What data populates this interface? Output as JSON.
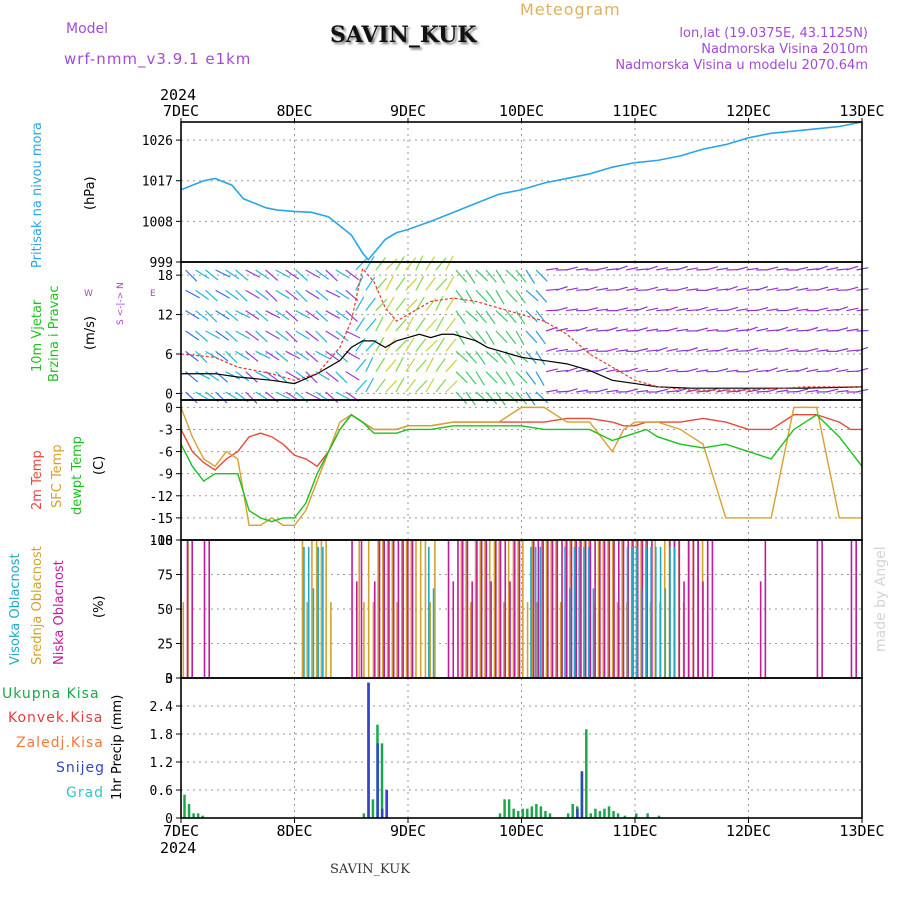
{
  "header": {
    "model_label": "Model",
    "model_value": "wrf-nmm_v3.9.1 e1km",
    "station": "SAVIN_KUK",
    "meteogram": "Meteogram",
    "lonlat": "lon,lat (19.0375E, 43.1125N)",
    "altitude": "Nadmorska Visina 2010m",
    "model_altitude": "Nadmorska Visina u modelu 2070.64m",
    "year_top": "2024",
    "year_bottom": "2024",
    "footer_station": "SAVIN_KUK",
    "watermark": "made by Angel"
  },
  "dates": [
    "7DEC",
    "8DEC",
    "9DEC",
    "10DEC",
    "11DEC",
    "12DEC",
    "13DEC"
  ],
  "labels": {
    "pressure": "Pritisak na nivou mora",
    "pressure_unit": "(hPa)",
    "wind1": "10m Vjetar",
    "wind2": "Brzina i Pravac",
    "wind_unit": "(m/s)",
    "wind_compass_w": "W",
    "wind_compass_e": "E",
    "wind_compass_ns": "S <-|-> N",
    "temp_2m": "2m Temp",
    "temp_sfc": "SFC Temp",
    "temp_dew": "dewpt Temp",
    "temp_unit": "(C)",
    "cloud_high": "Visoka Oblacnost",
    "cloud_mid": "Srednja Oblacnost",
    "cloud_low": "Niska Oblacnost",
    "cloud_unit": "(%)",
    "precip_total": "Ukupna Kisa",
    "precip_conv": "Konvek.Kisa",
    "precip_frz": "Zaledj.Kisa",
    "precip_snow": "Snijeg",
    "precip_hail": "Grad",
    "precip_unit": "1hr Precip (mm)"
  },
  "colors": {
    "pressure": "#2aa6e6",
    "wind_speed": "#000000",
    "wind_gust": "#e23b2b",
    "t2m": "#e84a3a",
    "tsfc": "#d9a030",
    "tdew": "#1cc21c",
    "cloud_high": "#1faac8",
    "cloud_mid": "#d4a22c",
    "cloud_low": "#c21a9c",
    "precip_total": "#1aa84c",
    "precip_snow": "#3344cc",
    "precip_conv": "#e83c3c",
    "header_purple": "#a24ad6",
    "header_gold": "#e0b060"
  },
  "chart_data": [
    {
      "type": "line",
      "title": "Pritisak na nivou mora",
      "ylabel": "(hPa)",
      "ylim": [
        999,
        1030
      ],
      "yticks": [
        999,
        1008,
        1017,
        1026
      ],
      "x_days": [
        0,
        0.1,
        0.2,
        0.3,
        0.45,
        0.55,
        0.65,
        0.75,
        0.85,
        1.0,
        1.15,
        1.3,
        1.4,
        1.5,
        1.6,
        1.65,
        1.7,
        1.8,
        1.9,
        2.0,
        2.2,
        2.4,
        2.6,
        2.8,
        3.0,
        3.2,
        3.4,
        3.6,
        3.8,
        4.0,
        4.2,
        4.4,
        4.6,
        4.8,
        5.0,
        5.2,
        5.4,
        5.6,
        5.8,
        5.9,
        6.0
      ],
      "values": [
        1015,
        1016,
        1017,
        1017.5,
        1016,
        1013,
        1012,
        1011,
        1010.5,
        1010.2,
        1010,
        1009,
        1007,
        1005,
        1001,
        999.5,
        1001,
        1004,
        1005.5,
        1006.2,
        1008,
        1010,
        1012,
        1014,
        1015,
        1016.5,
        1017.5,
        1018.5,
        1020,
        1021,
        1021.5,
        1022.5,
        1024,
        1025,
        1026.5,
        1027.5,
        1028,
        1028.5,
        1029,
        1029.5,
        1030
      ]
    },
    {
      "type": "line",
      "title": "10m Vjetar Brzina i Pravac",
      "ylabel": "(m/s)",
      "ylim": [
        -1,
        20
      ],
      "yticks": [
        0,
        6,
        12,
        18
      ],
      "series": [
        {
          "name": "speed",
          "x": [
            0,
            0.3,
            0.5,
            0.8,
            1.0,
            1.2,
            1.4,
            1.5,
            1.6,
            1.7,
            1.8,
            1.9,
            2.0,
            2.1,
            2.2,
            2.3,
            2.4,
            2.5,
            2.6,
            2.7,
            2.8,
            2.9,
            3.0,
            3.2,
            3.4,
            3.6,
            3.8,
            4.0,
            4.2,
            4.5,
            5.0,
            5.5,
            6.0
          ],
          "values": [
            3,
            3,
            2.5,
            2,
            1.5,
            3,
            5,
            7,
            8,
            8,
            7,
            8,
            8.5,
            9,
            8.5,
            9,
            9,
            8.5,
            8,
            7,
            6.5,
            6,
            5.5,
            5,
            4.5,
            3.5,
            2,
            1.5,
            1,
            0.8,
            0.8,
            0.8,
            1
          ]
        },
        {
          "name": "gust",
          "x": [
            0,
            0.3,
            0.5,
            0.8,
            1.0,
            1.2,
            1.4,
            1.5,
            1.55,
            1.6,
            1.7,
            1.8,
            1.9,
            2.0,
            2.1,
            2.2,
            2.4,
            2.6,
            2.8,
            3.0,
            3.2,
            3.4,
            3.6,
            3.8,
            4.0,
            4.2,
            4.5,
            5.0,
            5.5,
            6.0
          ],
          "values": [
            6,
            5.5,
            4,
            3,
            2,
            3,
            7,
            11,
            15,
            19,
            17,
            13,
            11,
            12,
            13,
            14,
            14.5,
            14,
            13,
            12,
            11,
            9,
            6,
            4,
            2,
            1,
            0.5,
            0.5,
            1,
            1
          ]
        }
      ]
    },
    {
      "type": "line",
      "title": "2m Temp / SFC Temp / dewpt Temp",
      "ylabel": "(C)",
      "ylim": [
        -18,
        1
      ],
      "yticks": [
        0,
        -3,
        -6,
        -9,
        -12,
        -15,
        -18
      ],
      "x": [
        0,
        0.1,
        0.2,
        0.3,
        0.4,
        0.5,
        0.6,
        0.7,
        0.8,
        0.9,
        1.0,
        1.1,
        1.2,
        1.3,
        1.4,
        1.5,
        1.6,
        1.7,
        1.8,
        1.9,
        2.0,
        2.2,
        2.4,
        2.6,
        2.8,
        3.0,
        3.2,
        3.4,
        3.6,
        3.8,
        3.9,
        4.0,
        4.1,
        4.2,
        4.4,
        4.6,
        4.8,
        5.0,
        5.2,
        5.4,
        5.6,
        5.8,
        5.9,
        6.0
      ],
      "series": [
        {
          "name": "2m Temp",
          "values": [
            -3,
            -6,
            -7.5,
            -8.5,
            -7,
            -6,
            -4,
            -3.5,
            -4,
            -5,
            -6.5,
            -7,
            -8,
            -6,
            -3,
            -1,
            -2,
            -3,
            -3,
            -3,
            -2.5,
            -2.5,
            -2,
            -2,
            -2,
            -2,
            -2,
            -1.5,
            -1.5,
            -2,
            -2.5,
            -2.5,
            -2,
            -2,
            -2,
            -1.5,
            -2,
            -3,
            -3,
            -1,
            -1,
            -2,
            -3,
            -3
          ]
        },
        {
          "name": "SFC Temp",
          "values": [
            0,
            -4,
            -7,
            -8,
            -6,
            -7,
            -16,
            -16,
            -15,
            -16,
            -16,
            -14,
            -10,
            -6,
            -2,
            -1,
            -2,
            -3,
            -3,
            -3,
            -2.5,
            -2.5,
            -2,
            -2,
            -2,
            0,
            0,
            -2,
            -2,
            -6,
            -3,
            -2,
            -2,
            -2,
            -3,
            -5,
            -15,
            -15,
            -15,
            0,
            0,
            -15,
            -15,
            -15
          ]
        },
        {
          "name": "dewpt Temp",
          "values": [
            -5,
            -8,
            -10,
            -9,
            -9,
            -9,
            -14,
            -15,
            -15.5,
            -15,
            -15,
            -13,
            -9,
            -6,
            -3,
            -1,
            -2,
            -3.5,
            -3.5,
            -3.5,
            -3,
            -3,
            -2.5,
            -2.5,
            -2.5,
            -2.5,
            -3,
            -3,
            -3,
            -4.5,
            -4,
            -3.5,
            -3,
            -4,
            -5,
            -5.5,
            -5,
            -6,
            -7,
            -3,
            -1,
            -4,
            -6,
            -8
          ]
        }
      ]
    },
    {
      "type": "bar",
      "title": "Visoka / Srednja / Niska Oblacnost",
      "ylabel": "(%)",
      "ylim": [
        0,
        100
      ],
      "yticks": [
        0,
        25,
        50,
        75,
        100
      ],
      "high_ranges_days": [
        [
          1.05,
          1.25
        ],
        [
          2.15,
          2.2
        ],
        [
          3.05,
          3.15
        ],
        [
          3.35,
          3.6
        ],
        [
          3.9,
          4.35
        ]
      ],
      "mid_ranges_days": [
        [
          0.0,
          0.05
        ],
        [
          1.05,
          1.3
        ],
        [
          1.55,
          2.25
        ],
        [
          2.45,
          4.6
        ]
      ],
      "low_ranges_days": [
        [
          0.05,
          0.1
        ],
        [
          0.2,
          0.25
        ],
        [
          1.5,
          1.6
        ],
        [
          1.7,
          2.05
        ],
        [
          2.35,
          3.0
        ],
        [
          3.1,
          4.15
        ],
        [
          4.3,
          4.7
        ],
        [
          5.1,
          5.15
        ],
        [
          5.6,
          5.65
        ],
        [
          5.9,
          5.95
        ]
      ]
    },
    {
      "type": "bar",
      "title": "1hr Precip",
      "ylabel": "1hr Precip (mm)",
      "ylim": [
        0,
        3
      ],
      "yticks": [
        0,
        0.6,
        1.2,
        1.8,
        2.4,
        3
      ],
      "series": [
        {
          "name": "Ukupna Kisa",
          "x": [
            0.02,
            0.06,
            0.1,
            0.14,
            0.18,
            1.6,
            1.64,
            1.68,
            1.72,
            1.76,
            1.8,
            2.8,
            2.84,
            2.88,
            2.92,
            2.96,
            3.0,
            3.04,
            3.08,
            3.12,
            3.16,
            3.2,
            3.24,
            3.4,
            3.44,
            3.48,
            3.52,
            3.56,
            3.6,
            3.64,
            3.68,
            3.72,
            3.76,
            3.8,
            3.84,
            3.9,
            4.0,
            4.1,
            4.2
          ],
          "values": [
            0.5,
            0.3,
            0.1,
            0.1,
            0.05,
            0.1,
            2.9,
            0.4,
            2.0,
            1.6,
            0.6,
            0.1,
            0.4,
            0.4,
            0.2,
            0.15,
            0.2,
            0.2,
            0.25,
            0.3,
            0.25,
            0.15,
            0.1,
            0.1,
            0.3,
            0.25,
            1.0,
            1.9,
            0.1,
            0.2,
            0.15,
            0.2,
            0.25,
            0.15,
            0.1,
            0.05,
            0.1,
            0.1,
            0.05
          ]
        },
        {
          "name": "Snijeg",
          "x": [
            1.62,
            1.7,
            1.74,
            1.78,
            3.46,
            3.5
          ],
          "values": [
            2.9,
            1.6,
            0.2,
            0.6,
            0.2,
            1.0
          ]
        }
      ]
    }
  ]
}
